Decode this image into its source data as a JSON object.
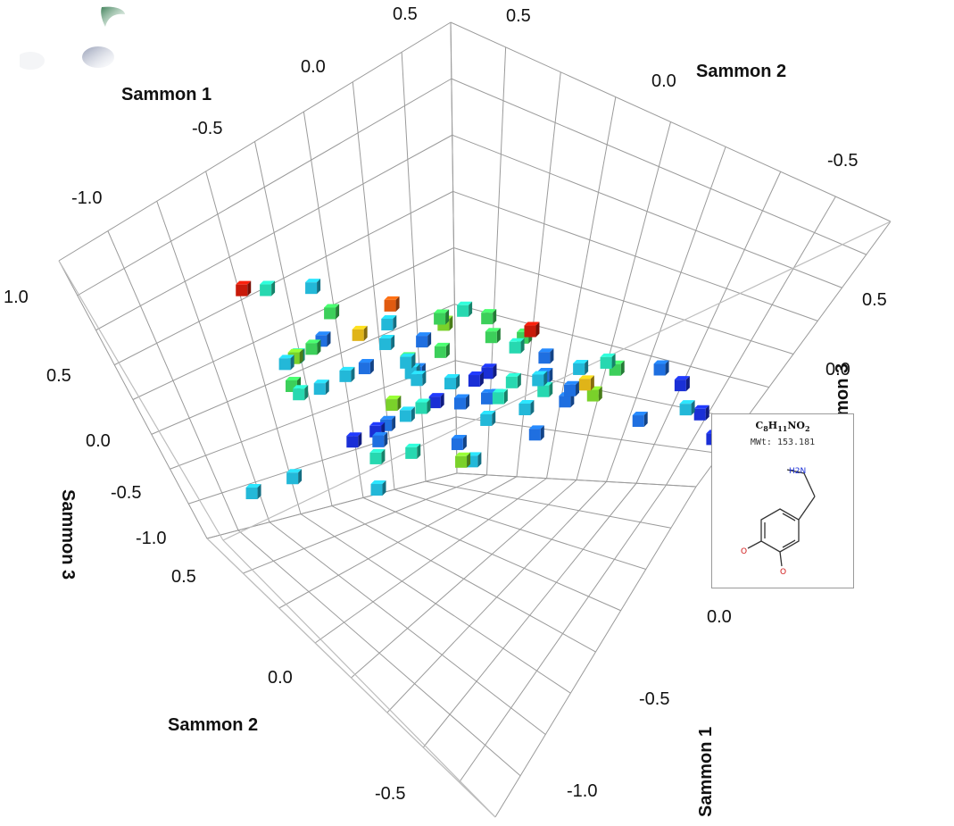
{
  "chart_data": {
    "type": "scatter",
    "dimensions": 3,
    "marker": "cube",
    "grid": true,
    "axes": {
      "x": {
        "label": "Sammon 1",
        "ticks": [
          "-1.0",
          "-0.5",
          "0.0",
          "0.5"
        ],
        "range": [
          -1.0,
          0.5
        ]
      },
      "y": {
        "label": "Sammon 2",
        "ticks": [
          "-0.5",
          "0.0",
          "0.5"
        ],
        "range": [
          -0.5,
          0.5
        ]
      },
      "z": {
        "label": "Sammon 3",
        "ticks": [
          "-1.0",
          "-0.5",
          "0.0",
          "0.5",
          "1.0"
        ],
        "range": [
          -1.0,
          1.0
        ]
      }
    },
    "color_scale": [
      "#1a2fd6",
      "#1f6fe0",
      "#23b8d8",
      "#27d8b0",
      "#3ccf5a",
      "#7ad12a",
      "#e0b418",
      "#e05a10",
      "#c81a0a"
    ],
    "points": [
      {
        "x": -0.55,
        "y": 0.31,
        "z": 0.67,
        "c": 8
      },
      {
        "x": -0.45,
        "y": 0.35,
        "z": 0.52,
        "c": 3
      },
      {
        "x": -0.35,
        "y": 0.22,
        "z": 0.47,
        "c": 4
      },
      {
        "x": -0.3,
        "y": 0.34,
        "z": 0.42,
        "c": 2
      },
      {
        "x": -0.32,
        "y": 0.16,
        "z": 0.39,
        "c": 6
      },
      {
        "x": -0.25,
        "y": 0.12,
        "z": 0.44,
        "c": 2
      },
      {
        "x": -0.16,
        "y": 0.2,
        "z": 0.37,
        "c": 7
      },
      {
        "x": -0.12,
        "y": 0.07,
        "z": 0.41,
        "c": 4
      },
      {
        "x": -0.05,
        "y": 0.06,
        "z": 0.4,
        "c": 3
      },
      {
        "x": 0.0,
        "y": 0.03,
        "z": 0.34,
        "c": 4
      },
      {
        "x": 0.05,
        "y": -0.06,
        "z": 0.31,
        "c": 8
      },
      {
        "x": -0.6,
        "y": 0.1,
        "z": 0.58,
        "c": 2
      },
      {
        "x": -0.62,
        "y": 0.04,
        "z": 0.5,
        "c": 3
      },
      {
        "x": -0.5,
        "y": 0.12,
        "z": 0.54,
        "c": 4
      },
      {
        "x": -0.42,
        "y": 0.02,
        "z": 0.48,
        "c": 1
      },
      {
        "x": -0.38,
        "y": 0.25,
        "z": 0.29,
        "c": 1
      },
      {
        "x": -0.42,
        "y": -0.06,
        "z": 0.36,
        "c": 5
      },
      {
        "x": -0.3,
        "y": 0.01,
        "z": 0.4,
        "c": 2
      },
      {
        "x": -0.45,
        "y": 0.3,
        "z": 0.18,
        "c": 3
      },
      {
        "x": -0.24,
        "y": -0.1,
        "z": 0.22,
        "c": 1
      },
      {
        "x": -0.14,
        "y": 0.06,
        "z": 0.24,
        "c": 4
      },
      {
        "x": -0.08,
        "y": -0.12,
        "z": 0.2,
        "c": 3
      },
      {
        "x": -0.02,
        "y": -0.15,
        "z": 0.18,
        "c": 2
      },
      {
        "x": 0.04,
        "y": -0.2,
        "z": 0.1,
        "c": 1
      },
      {
        "x": 0.08,
        "y": -0.24,
        "z": 0.06,
        "c": 5
      },
      {
        "x": -0.2,
        "y": 0.1,
        "z": 0.08,
        "c": 2
      },
      {
        "x": -0.1,
        "y": -0.05,
        "z": 0.04,
        "c": 1
      },
      {
        "x": -0.16,
        "y": 0.16,
        "z": 0.02,
        "c": 2
      },
      {
        "x": -0.04,
        "y": -0.02,
        "z": -0.05,
        "c": 1
      },
      {
        "x": 0.0,
        "y": 0.08,
        "z": -0.08,
        "c": 0
      },
      {
        "x": 0.06,
        "y": -0.1,
        "z": -0.03,
        "c": 3
      },
      {
        "x": 0.1,
        "y": -0.14,
        "z": -0.1,
        "c": 1
      },
      {
        "x": -0.3,
        "y": 0.06,
        "z": 0.0,
        "c": 2
      },
      {
        "x": -0.36,
        "y": 0.0,
        "z": -0.1,
        "c": 3
      },
      {
        "x": -0.25,
        "y": -0.12,
        "z": -0.12,
        "c": 2
      },
      {
        "x": -0.18,
        "y": 0.0,
        "z": -0.22,
        "c": 1
      },
      {
        "x": -0.1,
        "y": 0.14,
        "z": -0.18,
        "c": 0
      },
      {
        "x": -0.05,
        "y": 0.24,
        "z": -0.14,
        "c": 1
      },
      {
        "x": 0.02,
        "y": 0.18,
        "z": -0.2,
        "c": 2
      },
      {
        "x": -0.4,
        "y": 0.12,
        "z": -0.25,
        "c": 3
      },
      {
        "x": -0.48,
        "y": 0.06,
        "z": -0.3,
        "c": 2
      },
      {
        "x": -0.3,
        "y": 0.2,
        "z": -0.32,
        "c": 1
      },
      {
        "x": -0.22,
        "y": 0.28,
        "z": -0.4,
        "c": 0
      },
      {
        "x": -0.12,
        "y": 0.32,
        "z": -0.46,
        "c": 1
      },
      {
        "x": -0.35,
        "y": -0.2,
        "z": 0.1,
        "c": 5
      },
      {
        "x": 0.12,
        "y": 0.02,
        "z": 0.12,
        "c": 4
      },
      {
        "x": 0.16,
        "y": -0.02,
        "z": 0.0,
        "c": 1
      },
      {
        "x": 0.2,
        "y": -0.1,
        "z": -0.04,
        "c": 2
      },
      {
        "x": 0.24,
        "y": -0.18,
        "z": -0.02,
        "c": 4
      },
      {
        "x": 0.28,
        "y": -0.28,
        "z": 0.02,
        "c": 1
      },
      {
        "x": 0.3,
        "y": -0.34,
        "z": -0.06,
        "c": 0
      },
      {
        "x": 0.26,
        "y": -0.4,
        "z": -0.12,
        "c": 2
      },
      {
        "x": 0.18,
        "y": -0.32,
        "z": -0.16,
        "c": 1
      },
      {
        "x": -0.62,
        "y": 0.3,
        "z": -0.45,
        "c": 2
      },
      {
        "x": -0.75,
        "y": 0.4,
        "z": -0.62,
        "c": 2
      },
      {
        "x": -0.2,
        "y": 0.4,
        "z": -0.58,
        "c": 0
      },
      {
        "x": 0.1,
        "y": -0.05,
        "z": -0.38,
        "c": 1
      },
      {
        "x": 0.36,
        "y": -0.4,
        "z": -0.3,
        "c": 0
      },
      {
        "x": 0.4,
        "y": -0.46,
        "z": -0.5,
        "c": 0
      },
      {
        "x": -0.08,
        "y": 0.1,
        "z": 0.3,
        "c": 5
      },
      {
        "x": -0.02,
        "y": 0.0,
        "z": 0.28,
        "c": 4
      },
      {
        "x": 0.02,
        "y": -0.04,
        "z": 0.22,
        "c": 3
      },
      {
        "x": -0.26,
        "y": 0.06,
        "z": 0.3,
        "c": 4
      },
      {
        "x": -0.52,
        "y": 0.2,
        "z": 0.38,
        "c": 5
      },
      {
        "x": -0.58,
        "y": 0.16,
        "z": 0.32,
        "c": 4
      },
      {
        "x": -0.1,
        "y": -0.18,
        "z": 0.12,
        "c": 2
      },
      {
        "x": 0.14,
        "y": -0.22,
        "z": 0.18,
        "c": 3
      },
      {
        "x": -0.18,
        "y": 0.22,
        "z": 0.14,
        "c": 2
      },
      {
        "x": -0.06,
        "y": 0.2,
        "z": 0.08,
        "c": 1
      },
      {
        "x": 0.08,
        "y": 0.1,
        "z": -0.12,
        "c": 0
      },
      {
        "x": -0.14,
        "y": -0.08,
        "z": -0.02,
        "c": 2
      },
      {
        "x": 0.22,
        "y": 0.02,
        "z": -0.2,
        "c": 1
      },
      {
        "x": -0.32,
        "y": -0.04,
        "z": 0.2,
        "c": 3
      },
      {
        "x": -0.44,
        "y": 0.24,
        "z": 0.06,
        "c": 2
      },
      {
        "x": -0.28,
        "y": 0.3,
        "z": -0.06,
        "c": 2
      },
      {
        "x": 0.0,
        "y": -0.28,
        "z": 0.28,
        "c": 6
      },
      {
        "x": -0.2,
        "y": -0.2,
        "z": 0.34,
        "c": 3
      }
    ]
  },
  "popup": {
    "formula_parts": [
      "C",
      "8",
      "H",
      "11",
      "NO",
      "2"
    ],
    "mwt": "MWt: 153.181",
    "amine_label": "H2N",
    "oxygen_label": "O"
  },
  "logo": {
    "icon": "app-logo-icon"
  }
}
